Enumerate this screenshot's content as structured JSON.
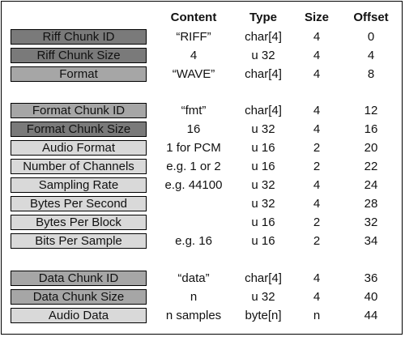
{
  "headers": {
    "content": "Content",
    "type": "Type",
    "size": "Size",
    "offset": "Offset"
  },
  "colors": {
    "dark": "#7a7a7a",
    "medium": "#a6a6a6",
    "light": "#d9d9d9",
    "text": "#111111"
  },
  "rows": [
    {
      "label": "Riff Chunk ID",
      "content": "“RIFF”",
      "type": "char[4]",
      "size": "4",
      "offset": "0"
    },
    {
      "label": "Riff Chunk Size",
      "content": "4",
      "type": "u 32",
      "size": "4",
      "offset": "4"
    },
    {
      "label": "Format",
      "content": "“WAVE”",
      "type": "char[4]",
      "size": "4",
      "offset": "8"
    },
    {
      "label": "Format Chunk ID",
      "content": "“fmt”",
      "type": "char[4]",
      "size": "4",
      "offset": "12"
    },
    {
      "label": "Format Chunk Size",
      "content": "16",
      "type": "u 32",
      "size": "4",
      "offset": "16"
    },
    {
      "label": "Audio Format",
      "content": "1 for PCM",
      "type": "u 16",
      "size": "2",
      "offset": "20"
    },
    {
      "label": "Number of Channels",
      "content": "e.g. 1 or 2",
      "type": "u 16",
      "size": "2",
      "offset": "22"
    },
    {
      "label": "Sampling Rate",
      "content": "e.g. 44100",
      "type": "u 32",
      "size": "4",
      "offset": "24"
    },
    {
      "label": "Bytes Per Second",
      "content": "",
      "type": "u 32",
      "size": "4",
      "offset": "28"
    },
    {
      "label": "Bytes Per Block",
      "content": "",
      "type": "u 16",
      "size": "2",
      "offset": "32"
    },
    {
      "label": "Bits Per Sample",
      "content": "e.g. 16",
      "type": "u 16",
      "size": "2",
      "offset": "34"
    },
    {
      "label": "Data Chunk ID",
      "content": "“data”",
      "type": "char[4]",
      "size": "4",
      "offset": "36"
    },
    {
      "label": "Data Chunk Size",
      "content": "n",
      "type": "u 32",
      "size": "4",
      "offset": "40"
    },
    {
      "label": "Audio Data",
      "content": "n samples",
      "type": "byte[n]",
      "size": "n",
      "offset": "44"
    }
  ]
}
